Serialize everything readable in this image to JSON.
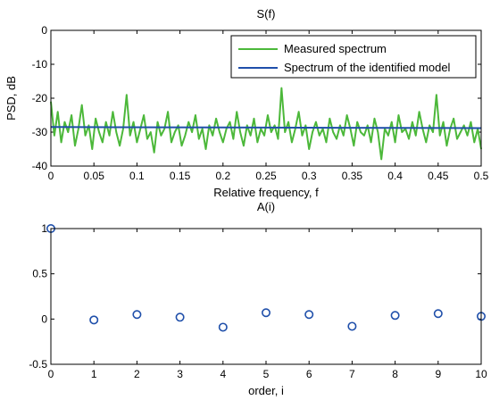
{
  "chart_data": [
    {
      "type": "line",
      "title": "S(f)",
      "xlabel": "Relative frequency, f",
      "ylabel": "PSD, dB",
      "xlim": [
        0,
        0.5
      ],
      "ylim": [
        -40,
        0
      ],
      "xticks": [
        0,
        0.05,
        0.1,
        0.15,
        0.2,
        0.25,
        0.3,
        0.35,
        0.4,
        0.45,
        0.5
      ],
      "xtick_labels": [
        "0",
        "0.05",
        "0.1",
        "0.15",
        "0.2",
        "0.25",
        "0.3",
        "0.35",
        "0.4",
        "0.45",
        "0.5"
      ],
      "yticks": [
        0,
        -10,
        -20,
        -30,
        -40
      ],
      "ytick_labels": [
        "0",
        "-10",
        "-20",
        "-30",
        "-40"
      ],
      "grid": false,
      "legend_position": "top-right",
      "series": [
        {
          "name": "Measured spectrum",
          "color": "#4cb83a",
          "x": [
            0,
            0.004,
            0.008,
            0.012,
            0.016,
            0.02,
            0.024,
            0.028,
            0.032,
            0.036,
            0.04,
            0.044,
            0.048,
            0.052,
            0.056,
            0.06,
            0.064,
            0.068,
            0.072,
            0.076,
            0.08,
            0.084,
            0.088,
            0.092,
            0.096,
            0.1,
            0.104,
            0.108,
            0.112,
            0.116,
            0.12,
            0.124,
            0.128,
            0.132,
            0.136,
            0.14,
            0.144,
            0.148,
            0.152,
            0.156,
            0.16,
            0.164,
            0.168,
            0.172,
            0.176,
            0.18,
            0.184,
            0.188,
            0.192,
            0.196,
            0.2,
            0.204,
            0.208,
            0.212,
            0.216,
            0.22,
            0.224,
            0.228,
            0.232,
            0.236,
            0.24,
            0.244,
            0.248,
            0.252,
            0.256,
            0.26,
            0.264,
            0.268,
            0.272,
            0.276,
            0.28,
            0.284,
            0.288,
            0.292,
            0.296,
            0.3,
            0.304,
            0.308,
            0.312,
            0.316,
            0.32,
            0.324,
            0.328,
            0.332,
            0.336,
            0.34,
            0.344,
            0.348,
            0.352,
            0.356,
            0.36,
            0.364,
            0.368,
            0.372,
            0.376,
            0.38,
            0.384,
            0.388,
            0.392,
            0.396,
            0.4,
            0.404,
            0.408,
            0.412,
            0.416,
            0.42,
            0.424,
            0.428,
            0.432,
            0.436,
            0.44,
            0.444,
            0.448,
            0.452,
            0.456,
            0.46,
            0.464,
            0.468,
            0.472,
            0.476,
            0.48,
            0.484,
            0.488,
            0.492,
            0.496,
            0.5
          ],
          "y": [
            -21,
            -31,
            -24,
            -33,
            -27,
            -30,
            -25,
            -34,
            -29,
            -22,
            -31,
            -28,
            -35,
            -26,
            -30,
            -33,
            -27,
            -31,
            -24,
            -30,
            -34,
            -29,
            -19,
            -31,
            -27,
            -33,
            -29,
            -25,
            -32,
            -30,
            -36,
            -27,
            -31,
            -29,
            -24,
            -33,
            -30,
            -28,
            -34,
            -31,
            -27,
            -30,
            -25,
            -32,
            -29,
            -35,
            -28,
            -31,
            -26,
            -30,
            -33,
            -29,
            -27,
            -32,
            -24,
            -30,
            -34,
            -28,
            -31,
            -26,
            -33,
            -29,
            -31,
            -25,
            -30,
            -28,
            -32,
            -17,
            -30,
            -27,
            -33,
            -29,
            -24,
            -31,
            -28,
            -35,
            -30,
            -27,
            -31,
            -29,
            -33,
            -26,
            -30,
            -32,
            -28,
            -31,
            -25,
            -29,
            -34,
            -27,
            -30,
            -31,
            -28,
            -33,
            -26,
            -30,
            -38,
            -29,
            -31,
            -27,
            -33,
            -25,
            -30,
            -29,
            -32,
            -27,
            -31,
            -24,
            -29,
            -33,
            -28,
            -30,
            -19,
            -31,
            -27,
            -34,
            -29,
            -26,
            -32,
            -30,
            -28,
            -31,
            -27,
            -33,
            -29,
            -35
          ]
        },
        {
          "name": "Spectrum of the identified model",
          "color": "#1f4faa",
          "x": [
            0,
            0.5
          ],
          "y": [
            -28.5,
            -28.8
          ]
        }
      ]
    },
    {
      "type": "scatter",
      "title": "A(i)",
      "xlabel": "order, i",
      "ylabel": "",
      "xlim": [
        0,
        10
      ],
      "ylim": [
        -0.5,
        1
      ],
      "xticks": [
        0,
        1,
        2,
        3,
        4,
        5,
        6,
        7,
        8,
        9,
        10
      ],
      "xtick_labels": [
        "0",
        "1",
        "2",
        "3",
        "4",
        "5",
        "6",
        "7",
        "8",
        "9",
        "10"
      ],
      "yticks": [
        1,
        0.5,
        0,
        -0.5
      ],
      "ytick_labels": [
        "1",
        "0.5",
        "0",
        "-0.5"
      ],
      "grid": false,
      "series": [
        {
          "color": "#1f4faa",
          "marker": "circle-open",
          "x": [
            0,
            1,
            2,
            3,
            4,
            5,
            6,
            7,
            8,
            9,
            10
          ],
          "y": [
            1.0,
            -0.01,
            0.05,
            0.02,
            -0.09,
            0.07,
            0.05,
            -0.08,
            0.04,
            0.06,
            0.03
          ]
        }
      ]
    }
  ]
}
